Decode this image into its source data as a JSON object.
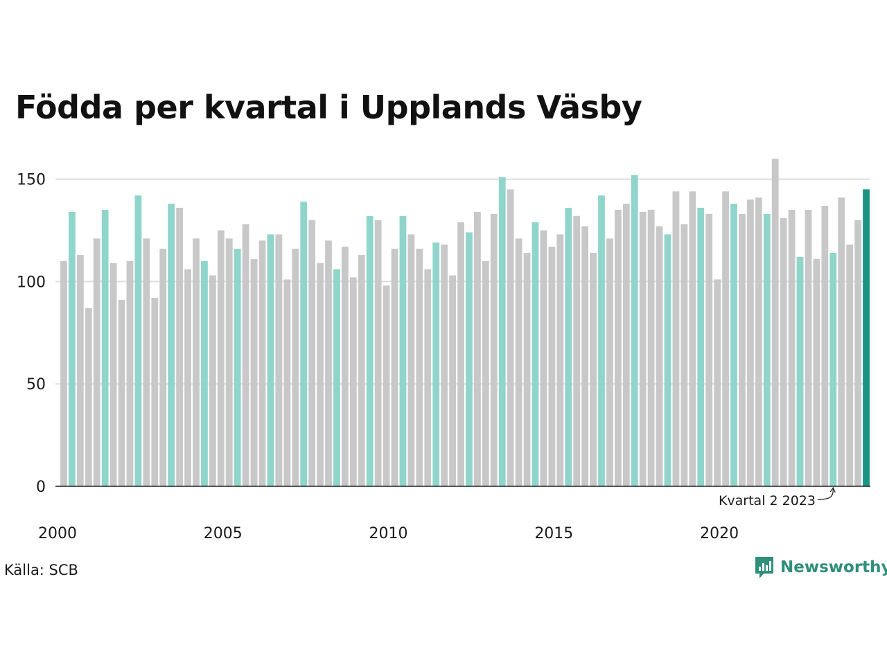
{
  "title": "Födda per kvartal i Upplands Väsby",
  "source": "Källa: SCB",
  "brand": "Newsworthy",
  "colors": {
    "bar_other": "#c8c8c8",
    "bar_q2": "#8fd5cb",
    "bar_latest": "#1a9483",
    "grid": "#dddddd",
    "axis": "#222222",
    "brand": "#2f8f7a"
  },
  "chart_data": {
    "type": "bar",
    "title": "Födda per kvartal i Upplands Väsby",
    "x_start": "2000 Q1",
    "values": [
      110,
      134,
      113,
      87,
      121,
      135,
      109,
      91,
      110,
      142,
      121,
      92,
      116,
      138,
      136,
      106,
      121,
      110,
      103,
      125,
      121,
      116,
      128,
      111,
      120,
      123,
      123,
      101,
      116,
      139,
      130,
      109,
      120,
      106,
      117,
      102,
      113,
      132,
      130,
      98,
      116,
      132,
      123,
      116,
      106,
      119,
      118,
      103,
      129,
      124,
      134,
      110,
      133,
      151,
      145,
      121,
      114,
      129,
      125,
      117,
      123,
      136,
      132,
      127,
      114,
      142,
      121,
      135,
      138,
      152,
      134,
      135,
      127,
      123,
      144,
      128,
      144,
      136,
      133,
      101,
      144,
      138,
      133,
      140,
      141,
      133,
      160,
      131,
      135,
      112,
      135,
      111,
      137,
      114,
      141,
      118,
      130,
      145
    ],
    "highlight": "Kvartal 2 (each year); last bar = latest quarter",
    "x_tick_labels": [
      "2000",
      "2005",
      "2010",
      "2015",
      "2020"
    ],
    "y_ticks": [
      0,
      50,
      100,
      150
    ],
    "ylim": [
      0,
      160
    ],
    "grid": true,
    "annotation": "Kvartal 2 2023",
    "annotation_target_index": 93
  }
}
